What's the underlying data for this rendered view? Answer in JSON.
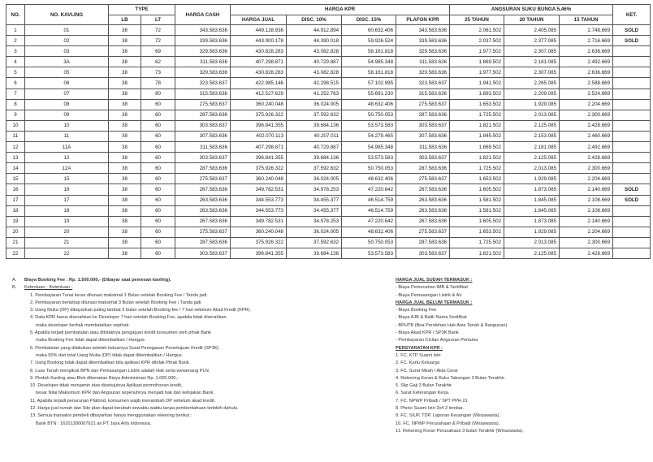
{
  "headers": {
    "no": "NO.",
    "kavling": "NO. KAVLING",
    "type": "TYPE",
    "lb": "LB",
    "lt": "LT",
    "harga_cash": "HARGA CASH",
    "harga_kpr": "HARGA KPR",
    "harga_jual": "HARGA JUAL",
    "disc10": "DISC. 10%",
    "disc15": "DISC. 15%",
    "plafon": "PLAFON KPR",
    "angsuran": "ANGSURAN SUKU BUNGA 5,46%",
    "t25": "25 TAHUN",
    "t20": "20 TAHUN",
    "t15": "15 TAHUN",
    "ket": "KET."
  },
  "rows": [
    [
      "1",
      "01",
      "38",
      "72",
      "343.583.636",
      "449.128.936",
      "44.912.894",
      "60.632.406",
      "343.583.636",
      "2.061.502",
      "2.405.085",
      "2.748.669",
      "SOLD"
    ],
    [
      "2",
      "02",
      "38",
      "72",
      "339.583.636",
      "443.900.178",
      "44.390.018",
      "59.926.524",
      "339.583.636",
      "2.037.502",
      "2.377.085",
      "2.716.669",
      "SOLD"
    ],
    [
      "3",
      "03",
      "38",
      "69",
      "329.583.636",
      "430.828.283",
      "43.082.828",
      "58.161.818",
      "329.583.636",
      "1.977.502",
      "2.307.085",
      "2.636.669",
      ""
    ],
    [
      "4",
      "3A",
      "38",
      "62",
      "311.583.636",
      "407.298.871",
      "40.729.887",
      "54.985.348",
      "311.583.636",
      "1.869.502",
      "2.181.085",
      "2.492.669",
      ""
    ],
    [
      "5",
      "05",
      "38",
      "73",
      "329.583.636",
      "430.828.283",
      "43.082.828",
      "58.161.818",
      "329.583.636",
      "1.977.502",
      "2.307.085",
      "2.636.669",
      ""
    ],
    [
      "6",
      "06",
      "38",
      "78",
      "323.583.637",
      "422.985.146",
      "42.298.515",
      "57.102.995",
      "323.583.637",
      "1.941.502",
      "2.265.085",
      "2.588.669",
      ""
    ],
    [
      "7",
      "07",
      "38",
      "80",
      "315.583.636",
      "412.527.629",
      "41.252.763",
      "55.691.230",
      "315.583.636",
      "1.893.502",
      "2.209.085",
      "2.524.669",
      ""
    ],
    [
      "8",
      "08",
      "38",
      "60",
      "275.583.637",
      "360.240.048",
      "36.024.005",
      "48.632.406",
      "275.583.637",
      "1.653.502",
      "1.929.085",
      "2.204.669",
      ""
    ],
    [
      "9",
      "09",
      "38",
      "60",
      "287.583.636",
      "375.926.322",
      "37.592.632",
      "50.750.053",
      "287.583.636",
      "1.725.502",
      "2.013.085",
      "2.300.669",
      ""
    ],
    [
      "10",
      "10",
      "38",
      "60",
      "303.583.637",
      "396.841.355",
      "39.684.136",
      "53.573.583",
      "303.583.637",
      "1.821.502",
      "2.125.085",
      "2.428.669",
      ""
    ],
    [
      "11",
      "11",
      "38",
      "60",
      "307.583.636",
      "402.070.113",
      "40.207.011",
      "54.279.465",
      "307.583.636",
      "1.845.502",
      "2.153.085",
      "2.460.669",
      ""
    ],
    [
      "12",
      "11A",
      "38",
      "60",
      "311.583.636",
      "407.298.871",
      "40.729.887",
      "54.985.348",
      "311.583.636",
      "1.869.502",
      "2.181.085",
      "2.492.669",
      ""
    ],
    [
      "13",
      "12",
      "38",
      "60",
      "303.583.637",
      "396.841.355",
      "39.684.136",
      "53.573.583",
      "303.583.637",
      "1.821.502",
      "2.125.085",
      "2.428.669",
      ""
    ],
    [
      "14",
      "12A",
      "38",
      "60",
      "287.583.636",
      "375.926.322",
      "37.592.632",
      "50.750.053",
      "287.583.636",
      "1.725.502",
      "2.013.085",
      "2.300.669",
      ""
    ],
    [
      "15",
      "15",
      "38",
      "60",
      "275.583.637",
      "360.240.048",
      "36.024.005",
      "48.632.406",
      "275.583.637",
      "1.653.502",
      "1.929.085",
      "2.204.669",
      ""
    ],
    [
      "16",
      "16",
      "38",
      "60",
      "267.583.636",
      "349.782.531",
      "34.978.253",
      "47.220.642",
      "267.583.636",
      "1.605.502",
      "1.873.085",
      "2.140.669",
      "SOLD"
    ],
    [
      "17",
      "17",
      "38",
      "60",
      "263.583.636",
      "344.553.773",
      "34.455.377",
      "46.514.759",
      "263.583.636",
      "1.581.502",
      "1.845.085",
      "2.108.669",
      "SOLD"
    ],
    [
      "18",
      "18",
      "38",
      "60",
      "263.583.636",
      "344.553.773",
      "34.455.377",
      "46.514.759",
      "263.583.636",
      "1.581.502",
      "1.845.085",
      "2.108.669",
      ""
    ],
    [
      "19",
      "19",
      "38",
      "60",
      "267.583.636",
      "349.782.531",
      "34.978.253",
      "47.220.642",
      "267.583.636",
      "1.605.502",
      "1.873.085",
      "2.140.669",
      ""
    ],
    [
      "20",
      "20",
      "38",
      "60",
      "275.583.637",
      "360.240.048",
      "36.024.005",
      "48.632.406",
      "275.583.637",
      "1.653.502",
      "1.929.085",
      "2.204.669",
      ""
    ],
    [
      "21",
      "21",
      "38",
      "60",
      "287.583.636",
      "375.926.322",
      "37.592.632",
      "50.750.053",
      "287.583.636",
      "1.725.502",
      "2.013.085",
      "2.300.669",
      ""
    ],
    [
      "22",
      "22",
      "38",
      "60",
      "303.583.637",
      "396.841.355",
      "39.684.136",
      "53.573.583",
      "303.583.637",
      "1.821.502",
      "2.125.085",
      "2.428.669",
      ""
    ]
  ],
  "notes": {
    "a_label": "A.",
    "a_text": "Biaya Booking Fee : Rp. 1.500.000,- (Dibayar saat pemesan kavling).",
    "b_label": "B.",
    "b_text": "Ketentuan - Ketentuan :",
    "items": [
      "1. Pembayaran Tunai keras dilunasi maksimal 1 Bulan setelah Booking Fee / Tanda jadi.",
      "2. Pembayaran bertahap dilunasi maksimal 3 Bulan setelah Booking Fee / Tanda jadi.",
      "3. Uang Muka (DP) dibayarkan paling lambat 3 bulan setelah Booking fee / 7 hari sebelum Akad Kredit (KPR).",
      "4. Data KPR harus diserahkan ke Developer 7 hari setelah Booking Fee, apabila tidak diserahkan",
      "maka developer berhak membatalkan sepihak.",
      "5. Apabila terjadi pembatalan atau ditolaknya pengajuan kredit konsumen oleh pihak Bank",
      "maka Booking Fee tidak dapat dikembalikan / Hangus.",
      "6. Pembatalan yang dilakukan setelah keluarnya Surat Penegasan Persetujuan Kredit (SP3K)",
      "maka 50% dari total Uang Muka (DP) tidak dapat dikembalikan / Hangus.",
      "7. Uang Booking tidak dapat dikembalikan bila aplikasi KPR ditolak Pihak Bank.",
      "8. Luas Tanah mengikuti BPN dan Pemasangan Listrik adalah Hak serta wewenang PLN.",
      "9. Pindah Kavling atau Blok dikenakan Biaya Administrasi Rp. 1.000.000,-",
      "10. Developer tidak menjamin atas disetujuinya Aplikasi permohonan kredit,",
      "besar Nilai Maksimum KPR dan Angsuran sepenuhnya menjadi hak dan kebijakan Bank.",
      "11. Apabila terjadi penurunan Plafond, konsumen wajib menambah DP sebelum akad kredit.",
      "12. Harga jual rumah dan Site plan dapat berubah sewaktu waktu tanpa pemberitahuan terlebih dahulu.",
      "13. Semua transaksi pembeli dibayarkan hanya menggunakan rekening berikut :",
      "Bank BTN : 16201300007621 an PT Jaya Arfa Indonesia."
    ],
    "termasuk_title": "HARGA JUAL SUDAH TERMASUK :",
    "termasuk": [
      "- Biaya Pemecahan IMB & Sertifikat",
      "- Biaya Pemasangan Listrik & Air"
    ],
    "belum_title": "HARGA JUAL BELUM TERMASUK :",
    "belum": [
      "- Biaya Booking Fee",
      "- Biaya AJB & Balik Nama Sertifikat",
      "- BPHTB (Bea Perolehan Hak Atas Tanah & Bangunan)",
      "- Biaya Akad KPR / SP3K Bank",
      "- Pembayaran Cicilan Angsuran Pertama"
    ],
    "syarat_title": "PERSYARATAN KPR :",
    "syarat": [
      "1. FC. KTP Suami Istri",
      "2. FC. Kartu Keluarga",
      "3. FC. Surat Nikah / Akta Cerai",
      "4. Rekening Koran & Buku Tabungan 3 Bulan Terakhir.",
      "5. Slip Gaji 3 Bulan Terakhir.",
      "6. Surat Keterangan Kerja.",
      "7. FC. NPWP Pribadi / SPT PPH 21",
      "8. Photo Suami Istri 3x4 2 lembar.",
      "9. FC. SIUP, TDP, Laporan Keuangan (Wiraswasta).",
      "10. FC. NPWP Perusahaan & Pribadi (Wiraswasta).",
      "11. Rekening Koran Perusahaan 3 bulan Terakhir (Wiraswasta)."
    ]
  }
}
